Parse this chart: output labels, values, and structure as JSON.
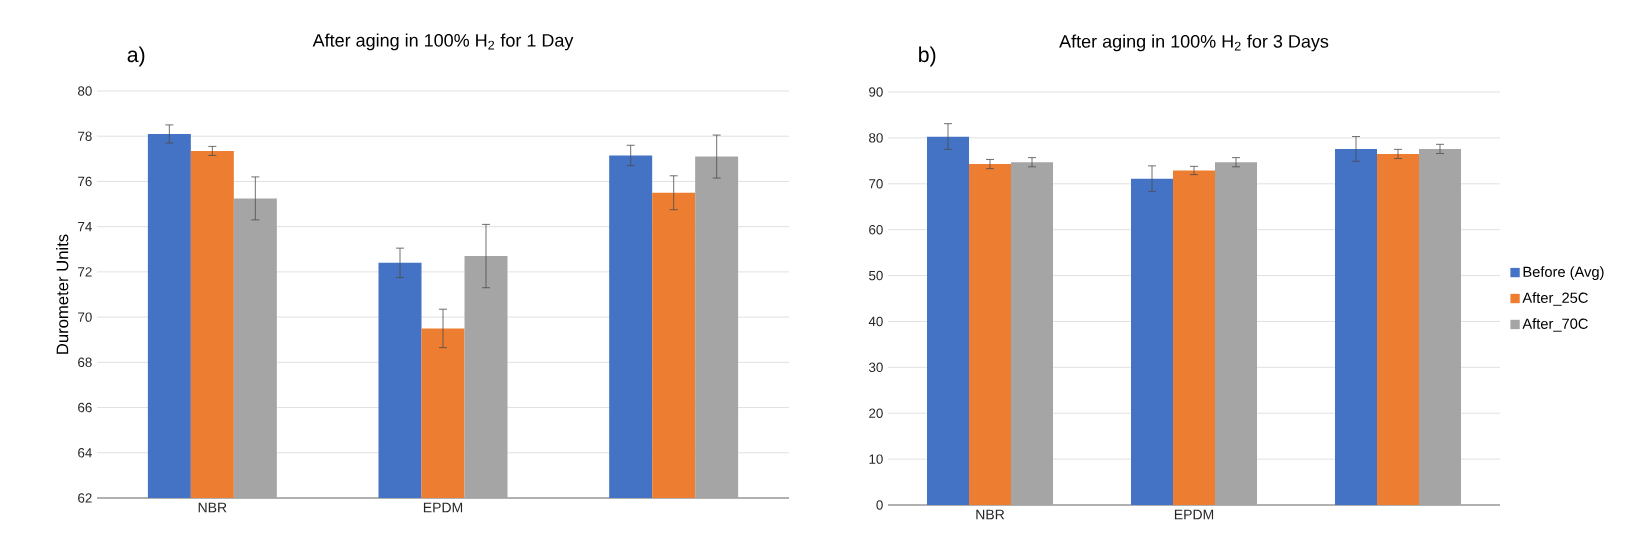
{
  "chart_data": [
    {
      "type": "bar",
      "title": "After aging in 100% H$_{2}$ for 1 Day",
      "ylabel": "Durometer Units",
      "annotations": [
        "a)"
      ],
      "categories": [
        "NBR",
        "EPDM",
        null
      ],
      "ylim": [
        62,
        80
      ],
      "yticks": [
        62,
        64,
        66,
        68,
        70,
        72,
        74,
        76,
        78,
        80
      ],
      "grid": "y",
      "series": [
        {
          "color": "#4472c4",
          "values": [
            78.1,
            72.4,
            77.15
          ],
          "errors": [
            0.4,
            0.65,
            0.45
          ]
        },
        {
          "color": "#ed7d31",
          "values": [
            77.35,
            69.5,
            75.5
          ],
          "errors": [
            0.2,
            0.85,
            0.75
          ]
        },
        {
          "color": "#a5a5a5",
          "values": [
            75.25,
            72.7,
            77.1
          ],
          "errors": [
            0.95,
            1.4,
            0.95
          ]
        }
      ]
    },
    {
      "type": "bar",
      "title": "After aging in 100% H$_{2}$ for 3 Days",
      "annotations": [
        "b)"
      ],
      "categories": [
        "NBR",
        "EPDM",
        null
      ],
      "ylim": [
        0,
        90
      ],
      "yticks": [
        0,
        10,
        20,
        30,
        40,
        50,
        60,
        70,
        80,
        90
      ],
      "grid": "y",
      "legend": "right",
      "series": [
        {
          "name": "Before (Avg)",
          "color": "#4472c4",
          "values": [
            80.3,
            71.1,
            77.6
          ],
          "errors": [
            2.8,
            2.8,
            2.7
          ]
        },
        {
          "name": "After_25C",
          "color": "#ed7d31",
          "values": [
            74.3,
            72.9,
            76.5
          ],
          "errors": [
            1.0,
            0.9,
            1.0
          ]
        },
        {
          "name": "After_70C",
          "color": "#a5a5a5",
          "values": [
            74.7,
            74.7,
            77.6
          ],
          "errors": [
            1.0,
            1.0,
            1.0
          ]
        }
      ]
    }
  ]
}
